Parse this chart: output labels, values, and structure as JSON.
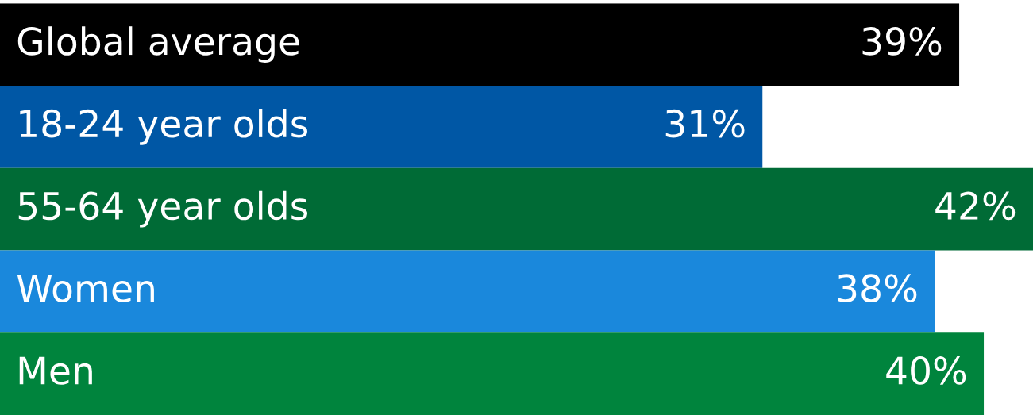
{
  "chart_data": {
    "type": "bar",
    "orientation": "horizontal",
    "categories": [
      "Global average",
      "18-24 year olds",
      "55-64 year olds",
      "Women",
      "Men"
    ],
    "values": [
      39,
      31,
      42,
      38,
      40
    ],
    "value_labels": [
      "39%",
      "31%",
      "42%",
      "38%",
      "40%"
    ],
    "colors": [
      "#000000",
      "#0057a5",
      "#006b36",
      "#1a88dc",
      "#00843d"
    ],
    "xlim": [
      0,
      42
    ]
  }
}
